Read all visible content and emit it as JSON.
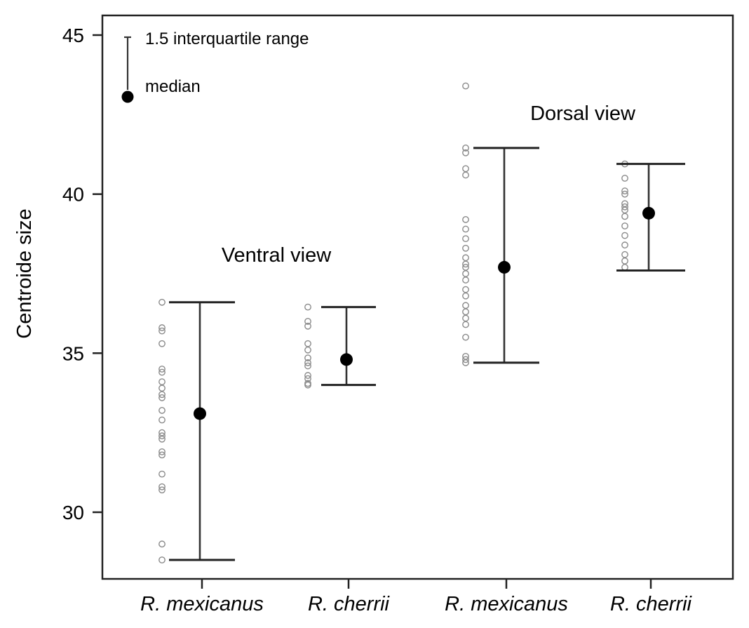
{
  "chart_data": {
    "type": "scatter",
    "title": "",
    "xlabel": "",
    "ylabel": "Centroide size",
    "ylim": [
      27.9,
      45.7
    ],
    "yticks": [
      30,
      35,
      40,
      45
    ],
    "categories": [
      "R. mexicanus",
      "R. cherrii",
      "R. mexicanus",
      "R. cherrii"
    ],
    "groups": [
      {
        "category": "R. mexicanus",
        "view": "Ventral view",
        "median": 33.1,
        "whisker_low": 28.5,
        "whisker_high": 36.6,
        "points": [
          36.6,
          35.8,
          35.7,
          35.3,
          34.5,
          34.4,
          34.1,
          33.9,
          33.7,
          33.6,
          33.2,
          32.9,
          32.5,
          32.4,
          32.3,
          31.9,
          31.8,
          31.2,
          30.8,
          30.7,
          29.0,
          28.5
        ]
      },
      {
        "category": "R. cherrii",
        "view": "Ventral view",
        "median": 34.8,
        "whisker_low": 34.0,
        "whisker_high": 36.45,
        "points": [
          36.45,
          36.0,
          35.85,
          35.3,
          35.1,
          34.85,
          34.7,
          34.6,
          34.3,
          34.2,
          34.05,
          34.0
        ]
      },
      {
        "category": "R. mexicanus",
        "view": "Dorsal view",
        "median": 37.7,
        "whisker_low": 34.7,
        "whisker_high": 41.45,
        "points": [
          43.4,
          41.45,
          41.3,
          40.8,
          40.6,
          39.2,
          38.9,
          38.6,
          38.3,
          38.0,
          37.8,
          37.7,
          37.5,
          37.3,
          37.0,
          36.8,
          36.5,
          36.3,
          36.1,
          35.9,
          35.5,
          34.9,
          34.8,
          34.7
        ]
      },
      {
        "category": "R. cherrii",
        "view": "Dorsal view",
        "median": 39.4,
        "whisker_low": 37.6,
        "whisker_high": 40.95,
        "points": [
          40.95,
          40.5,
          40.1,
          40.0,
          39.7,
          39.6,
          39.5,
          39.3,
          39.0,
          38.7,
          38.4,
          38.1,
          37.9,
          37.7
        ]
      }
    ],
    "annotations": [
      "Ventral view",
      "Dorsal view"
    ],
    "legend": {
      "placement": "top-left",
      "range_label": "1.5 interquartile range",
      "median_label": "median"
    },
    "grid": false
  }
}
